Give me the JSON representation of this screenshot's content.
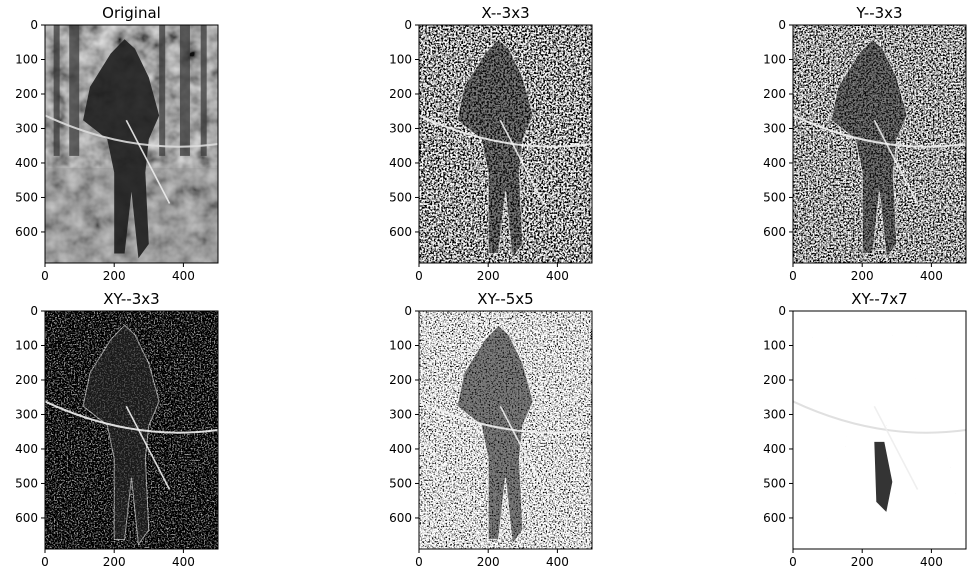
{
  "figure": {
    "background": "#ffffff",
    "axes_color": "#000000",
    "colormap": "gray"
  },
  "chart_data": [
    {
      "type": "heatmap",
      "title": "Original",
      "image": "grayscale photo",
      "xlim": [
        0,
        500
      ],
      "ylim": [
        690,
        0
      ],
      "xticks": [
        0,
        200,
        400
      ],
      "yticks": [
        0,
        100,
        200,
        300,
        400,
        500,
        600
      ],
      "xtick_labels": [
        "0",
        "200",
        "400"
      ],
      "ytick_labels": [
        "0",
        "100",
        "200",
        "300",
        "400",
        "500",
        "600"
      ]
    },
    {
      "type": "heatmap",
      "title": "X--3x3",
      "image": "horizontal edge response",
      "xlim": [
        0,
        500
      ],
      "ylim": [
        690,
        0
      ],
      "xticks": [
        0,
        200,
        400
      ],
      "yticks": [
        0,
        100,
        200,
        300,
        400,
        500,
        600
      ],
      "xtick_labels": [
        "0",
        "200",
        "400"
      ],
      "ytick_labels": [
        "0",
        "100",
        "200",
        "300",
        "400",
        "500",
        "600"
      ]
    },
    {
      "type": "heatmap",
      "title": "Y--3x3",
      "image": "vertical edge response",
      "xlim": [
        0,
        500
      ],
      "ylim": [
        690,
        0
      ],
      "xticks": [
        0,
        200,
        400
      ],
      "yticks": [
        0,
        100,
        200,
        300,
        400,
        500,
        600
      ],
      "xtick_labels": [
        "0",
        "200",
        "400"
      ],
      "ytick_labels": [
        "0",
        "100",
        "200",
        "300",
        "400",
        "500",
        "600"
      ]
    },
    {
      "type": "heatmap",
      "title": "XY--3x3",
      "image": "dark edge response",
      "xlim": [
        0,
        500
      ],
      "ylim": [
        690,
        0
      ],
      "xticks": [
        0,
        200,
        400
      ],
      "yticks": [
        0,
        100,
        200,
        300,
        400,
        500,
        600
      ],
      "xtick_labels": [
        "0",
        "200",
        "400"
      ],
      "ytick_labels": [
        "0",
        "100",
        "200",
        "300",
        "400",
        "500",
        "600"
      ]
    },
    {
      "type": "heatmap",
      "title": "XY--5x5",
      "image": "bright noisy edge response",
      "xlim": [
        0,
        500
      ],
      "ylim": [
        690,
        0
      ],
      "xticks": [
        0,
        200,
        400
      ],
      "yticks": [
        0,
        100,
        200,
        300,
        400,
        500,
        600
      ],
      "xtick_labels": [
        "0",
        "200",
        "400"
      ],
      "ytick_labels": [
        "0",
        "100",
        "200",
        "300",
        "400",
        "500",
        "600"
      ]
    },
    {
      "type": "heatmap",
      "title": "XY--7x7",
      "image": "mostly white sparse response",
      "xlim": [
        0,
        500
      ],
      "ylim": [
        690,
        0
      ],
      "xticks": [
        0,
        200,
        400
      ],
      "yticks": [
        0,
        100,
        200,
        300,
        400,
        500,
        600
      ],
      "xtick_labels": [
        "0",
        "200",
        "400"
      ],
      "ytick_labels": [
        "0",
        "100",
        "200",
        "300",
        "400",
        "500",
        "600"
      ]
    }
  ]
}
